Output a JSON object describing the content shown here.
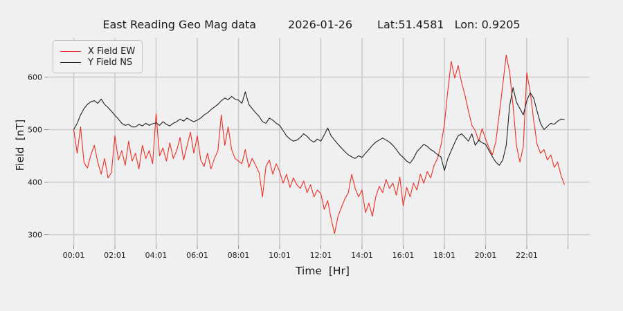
{
  "title": {
    "text": "East Reading Geo Mag data",
    "date": "2026-01-26",
    "lat": "Lat:51.4581",
    "lon": "Lon: 0.9205"
  },
  "axes": {
    "x_label": "Time  [Hr]",
    "y_label": "Field  [nT]"
  },
  "legend": [
    {
      "label": "X Field EW",
      "color": "#ec2d23"
    },
    {
      "label": "Y Field NS",
      "color": "#1f1f23"
    }
  ],
  "colors": {
    "background": "#f0f0f0",
    "gridline": "#cbcbcb",
    "tick": "#8c8c8c",
    "text": "#1a1a1a"
  },
  "chart_data": {
    "type": "line",
    "title": "East Reading Geo Mag data   2026-01-26   Lat:51.4581  Lon: 0.9205",
    "xlabel": "Time  [Hr]",
    "ylabel": "Field  [nT]",
    "grid": true,
    "legend_position": "upper left",
    "x_unit": "hours since 00:01",
    "xlim": [
      -0.6,
      24.6
    ],
    "ylim": [
      280,
      674
    ],
    "y_ticks": [
      300,
      400,
      500,
      600
    ],
    "y_tick_labels": [
      "300",
      "400",
      "500",
      "600"
    ],
    "x_tick_hours": [
      0,
      2,
      4,
      6,
      8,
      10,
      12,
      14,
      16,
      18,
      20,
      22
    ],
    "x_tick_labels": [
      "00:01",
      "02:01",
      "04:01",
      "06:01",
      "08:01",
      "10:01",
      "12:01",
      "14:01",
      "16:01",
      "18:01",
      "20:01",
      "22:01"
    ],
    "x_gridline_hours": [
      0,
      2,
      4,
      6,
      8,
      10,
      12,
      14,
      16,
      18,
      20,
      22,
      24
    ],
    "series": [
      {
        "name": "X Field EW",
        "color": "#ec2d23",
        "start_hour": 0,
        "step_hours": 0.1666667,
        "values": [
          500,
          455,
          505,
          437,
          427,
          452,
          470,
          438,
          415,
          445,
          408,
          418,
          488,
          442,
          460,
          432,
          478,
          440,
          455,
          425,
          470,
          445,
          460,
          435,
          530,
          450,
          465,
          440,
          475,
          445,
          460,
          485,
          442,
          468,
          495,
          455,
          488,
          442,
          430,
          455,
          425,
          445,
          460,
          528,
          470,
          505,
          462,
          445,
          440,
          435,
          462,
          428,
          445,
          432,
          418,
          372,
          430,
          442,
          415,
          435,
          420,
          398,
          415,
          390,
          408,
          395,
          388,
          402,
          380,
          395,
          372,
          385,
          378,
          348,
          365,
          330,
          302,
          335,
          352,
          368,
          380,
          415,
          388,
          372,
          385,
          342,
          360,
          335,
          372,
          392,
          380,
          405,
          388,
          398,
          375,
          410,
          355,
          390,
          372,
          398,
          385,
          415,
          398,
          420,
          408,
          432,
          445,
          470,
          510,
          575,
          630,
          598,
          622,
          590,
          565,
          535,
          508,
          498,
          478,
          502,
          482,
          465,
          452,
          478,
          530,
          585,
          642,
          610,
          545,
          470,
          438,
          468,
          608,
          572,
          518,
          472,
          455,
          462,
          442,
          452,
          428,
          438,
          412,
          395
        ]
      },
      {
        "name": "Y Field NS",
        "color": "#1f1f23",
        "start_hour": 0,
        "step_hours": 0.1666667,
        "values": [
          500,
          512,
          528,
          540,
          548,
          553,
          555,
          550,
          558,
          548,
          542,
          535,
          527,
          520,
          512,
          508,
          510,
          505,
          505,
          510,
          507,
          512,
          508,
          511,
          513,
          508,
          515,
          510,
          507,
          512,
          515,
          520,
          516,
          522,
          518,
          515,
          518,
          522,
          528,
          532,
          538,
          543,
          548,
          555,
          560,
          557,
          563,
          558,
          556,
          550,
          572,
          548,
          540,
          532,
          525,
          515,
          512,
          522,
          518,
          512,
          508,
          498,
          488,
          482,
          478,
          480,
          485,
          492,
          487,
          480,
          476,
          482,
          478,
          490,
          503,
          488,
          480,
          472,
          465,
          458,
          452,
          448,
          445,
          450,
          447,
          455,
          462,
          470,
          476,
          480,
          484,
          480,
          476,
          470,
          462,
          453,
          447,
          440,
          436,
          445,
          458,
          465,
          472,
          468,
          462,
          458,
          452,
          448,
          422,
          445,
          460,
          475,
          488,
          492,
          485,
          478,
          492,
          470,
          480,
          475,
          472,
          460,
          448,
          438,
          432,
          442,
          470,
          545,
          580,
          552,
          540,
          528,
          555,
          570,
          560,
          535,
          512,
          500,
          506,
          512,
          510,
          516,
          520,
          519
        ]
      }
    ]
  }
}
